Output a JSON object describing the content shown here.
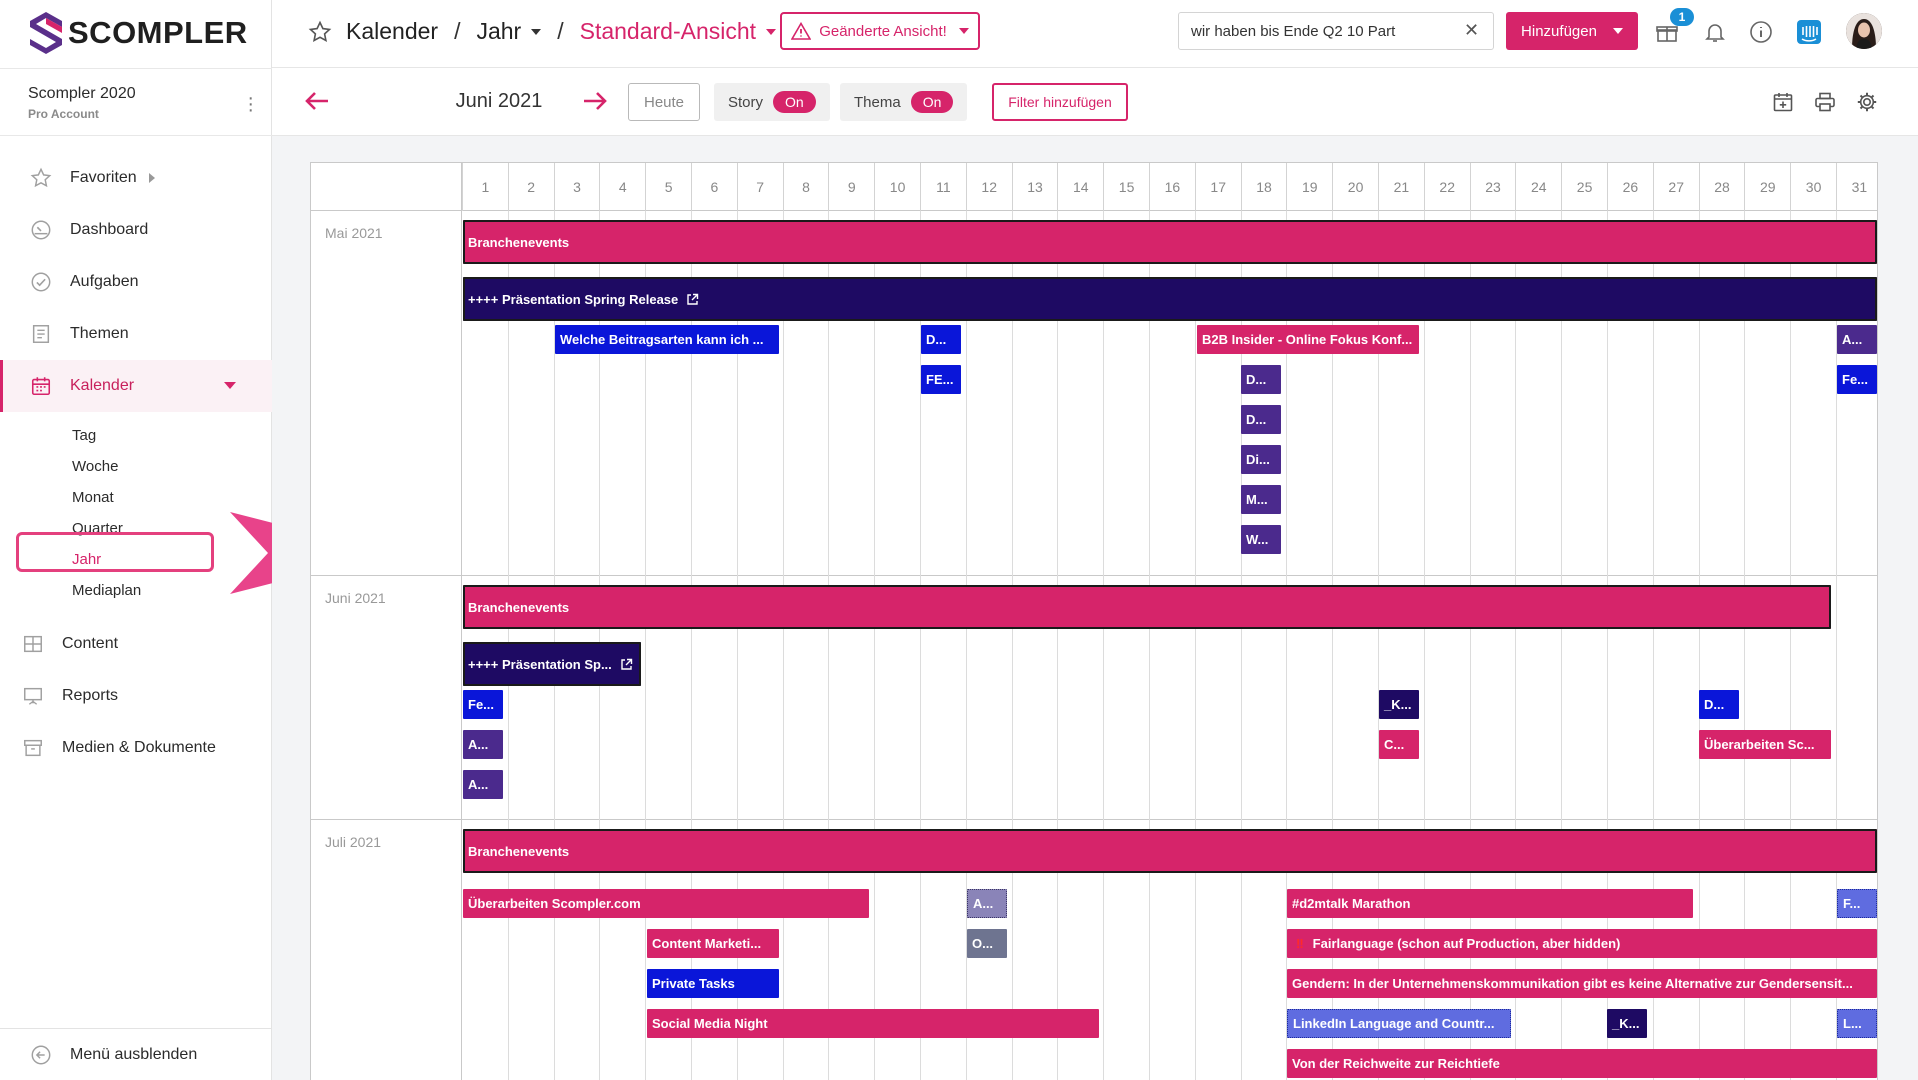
{
  "brand": {
    "name": "SCOMPLER",
    "accent": "#d6246a"
  },
  "account": {
    "name": "Scompler 2020",
    "plan": "Pro Account"
  },
  "nav": {
    "items": [
      {
        "label": "Favoriten",
        "icon": "star-icon"
      },
      {
        "label": "Dashboard",
        "icon": "gauge-icon"
      },
      {
        "label": "Aufgaben",
        "icon": "check-circle-icon"
      },
      {
        "label": "Themen",
        "icon": "document-icon"
      },
      {
        "label": "Kalender",
        "icon": "calendar-icon"
      }
    ],
    "calendar_sub": [
      "Tag",
      "Woche",
      "Monat",
      "Quarter",
      "Jahr",
      "Mediaplan"
    ],
    "items2": [
      {
        "label": "Content",
        "icon": "grid-icon"
      },
      {
        "label": "Reports",
        "icon": "presentation-icon"
      },
      {
        "label": "Medien & Dokumente",
        "icon": "archive-icon"
      }
    ],
    "hide_menu": "Menü ausblenden"
  },
  "header": {
    "crumb1": "Kalender",
    "sep": "/",
    "crumb2": "Jahr",
    "view": "Standard-Ansicht",
    "changed_view": "Geänderte Ansicht!",
    "search_value": "wir haben bis Ende Q2 10 Part",
    "add_label": "Hinzufügen",
    "notification_count": "1"
  },
  "toolbar": {
    "month": "Juni 2021",
    "today": "Heute",
    "story_label": "Story",
    "story_state": "On",
    "theme_label": "Thema",
    "theme_state": "On",
    "filter": "Filter hinzufügen"
  },
  "calendar": {
    "days": [
      "1",
      "2",
      "3",
      "4",
      "5",
      "6",
      "7",
      "8",
      "9",
      "10",
      "11",
      "12",
      "13",
      "14",
      "15",
      "16",
      "17",
      "18",
      "19",
      "20",
      "21",
      "22",
      "23",
      "24",
      "25",
      "26",
      "27",
      "28",
      "29",
      "30",
      "31"
    ],
    "months": [
      {
        "name": "Mai 2021"
      },
      {
        "name": "Juni 2021"
      },
      {
        "name": "Juli 2021"
      }
    ],
    "events": {
      "m1_a": "Branchenevents",
      "m1_b": "++++ Präsentation Spring Release",
      "m1_c": "Welche Beitragsarten kann ich ...",
      "m1_d": "D...",
      "m1_e": "FE...",
      "m1_f": "B2B Insider - Online Fokus Konf...",
      "m1_g": "D...",
      "m1_h": "D...",
      "m1_i": "Di...",
      "m1_j": "M...",
      "m1_k": "W...",
      "m1_l": "A...",
      "m1_m": "Fe...",
      "m2_a": "Branchenevents",
      "m2_b": "++++ Präsentation Sp...",
      "m2_c": "Fe...",
      "m2_d": "A...",
      "m2_e": "A...",
      "m2_f": "_K...",
      "m2_g": "C...",
      "m2_h": "D...",
      "m2_i": "Überarbeiten Sc...",
      "m3_a": "Branchenevents",
      "m3_b": "Überarbeiten Scompler.com",
      "m3_c": "Content Marketi...",
      "m3_d": "Private Tasks",
      "m3_e": "Social Media Night",
      "m3_f": "A...",
      "m3_g": "O...",
      "m3_h": "#d2mtalk Marathon",
      "m3_i": "Fairlanguage (schon auf Production, aber hidden)",
      "m3_j": "Gendern: In der Unternehmenskommunikation gibt es keine Alternative zur Gendersensit...",
      "m3_k": "LinkedIn Language and Countr...",
      "m3_l": "_K...",
      "m3_m": "Von der Reichweite zur Reichtiefe",
      "m3_n": "F...",
      "m3_o": "L..."
    }
  }
}
